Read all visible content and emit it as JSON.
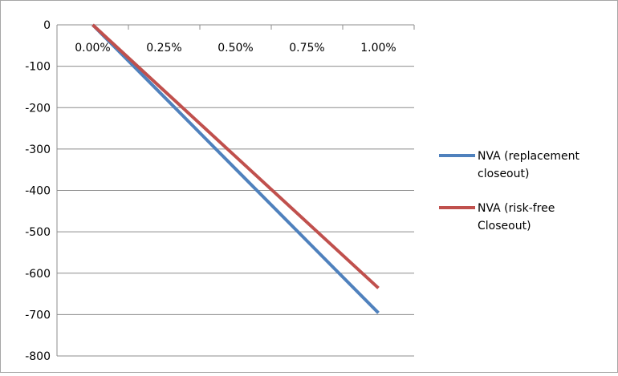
{
  "chart_data": {
    "type": "line",
    "title": "",
    "xlabel": "",
    "ylabel": "",
    "x": [
      0.0,
      0.25,
      0.5,
      0.75,
      1.0
    ],
    "x_tick_labels": [
      "0.00%",
      "0.25%",
      "0.50%",
      "0.75%",
      "1.00%"
    ],
    "y_ticks": [
      0,
      -100,
      -200,
      -300,
      -400,
      -500,
      -600,
      -700,
      -800
    ],
    "y_tick_labels": [
      "0",
      "-100",
      "-200",
      "-300",
      "-400",
      "-500",
      "-600",
      "-700",
      "-800"
    ],
    "ylim": [
      -800,
      0
    ],
    "xlim": [
      -0.125,
      1.125
    ],
    "grid": true,
    "legend_position": "right",
    "series": [
      {
        "name_lines": [
          "NVA (replacement",
          "closeout)"
        ],
        "color": "#4f81bd",
        "values": [
          0,
          -174,
          -348,
          -522,
          -696
        ]
      },
      {
        "name_lines": [
          "NVA (risk-free",
          "Closeout)"
        ],
        "color": "#c0504d",
        "values": [
          0,
          -159,
          -318,
          -477,
          -636
        ]
      }
    ]
  }
}
